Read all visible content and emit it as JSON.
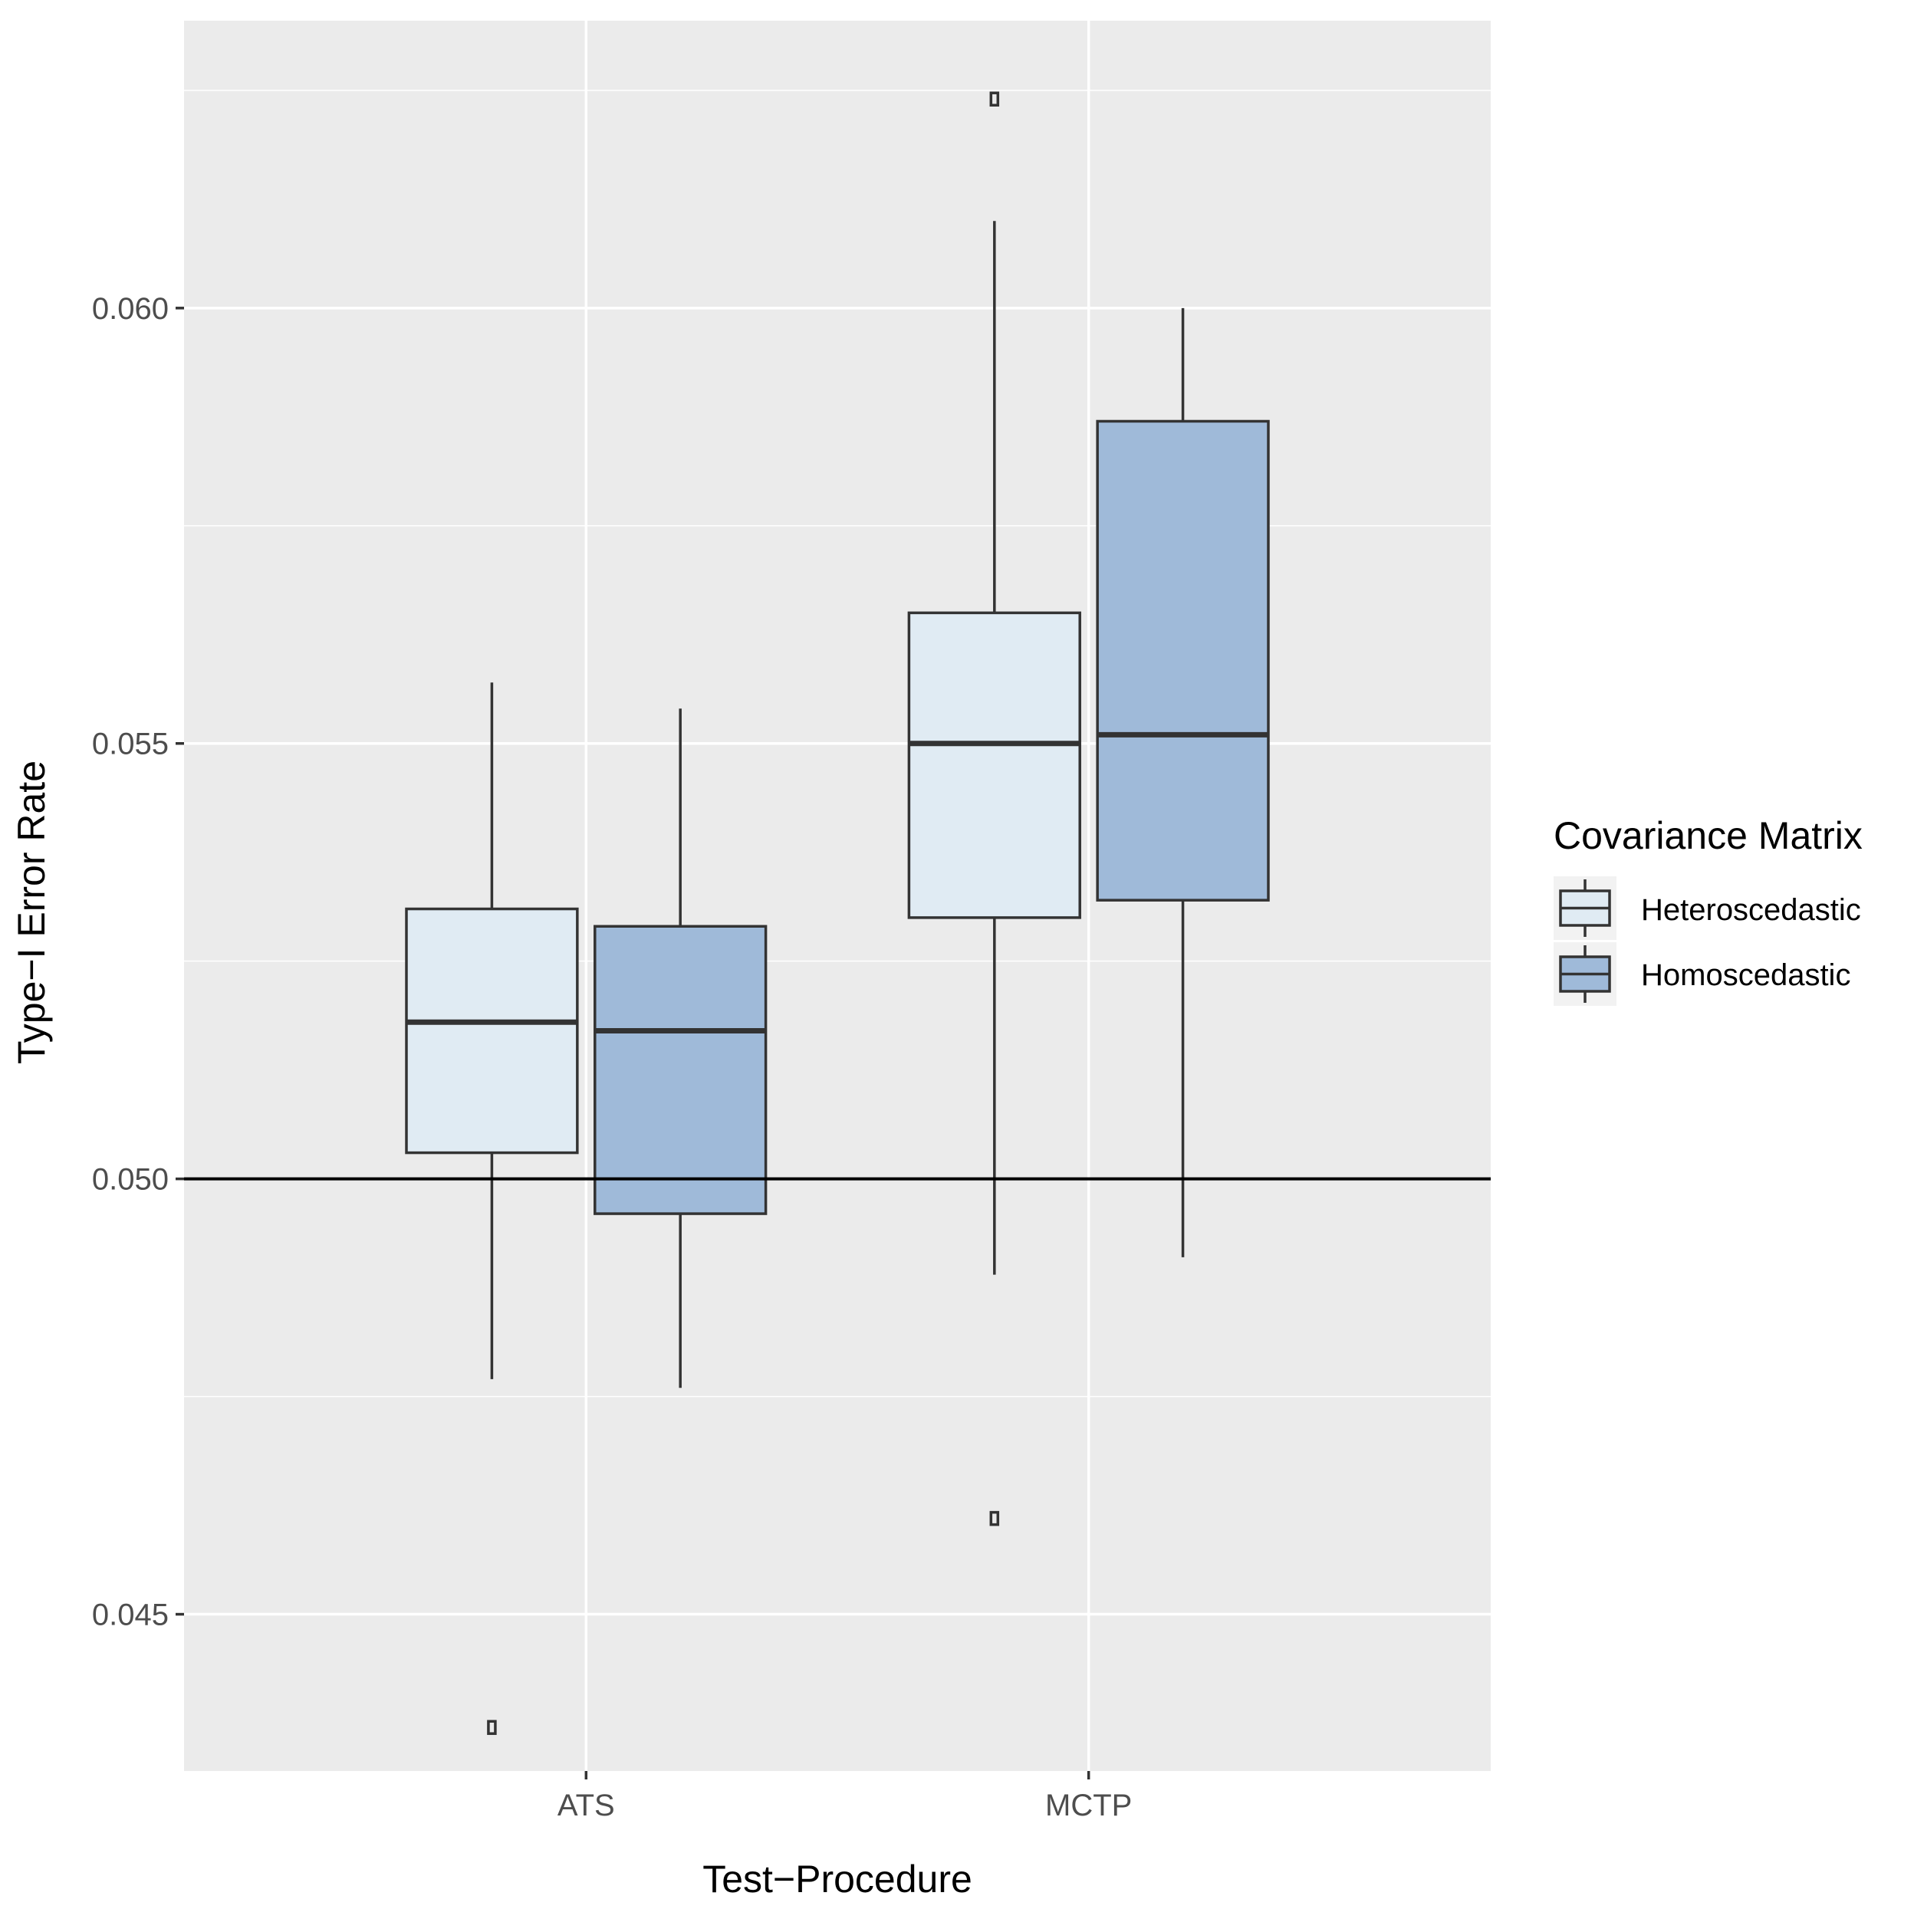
{
  "chart_data": {
    "type": "boxplot",
    "title": "",
    "xlabel": "Test−Procedure",
    "ylabel": "Type−I Error Rate",
    "categories": [
      "ATS",
      "MCTP"
    ],
    "yticks": [
      "0.045",
      "0.050",
      "0.055",
      "0.060"
    ],
    "ytick_values": [
      0.045,
      0.05,
      0.055,
      0.06
    ],
    "ylim": [
      0.0432,
      0.0633
    ],
    "reference_line": 0.05,
    "grid": true,
    "legend": {
      "title": "Covariance Matrix",
      "position": "right",
      "entries": [
        "Heteroscedastic",
        "Homoscedastic"
      ]
    },
    "series": [
      {
        "name": "Heteroscedastic",
        "color": "#e0ebf3",
        "boxes": [
          {
            "category": "ATS",
            "whisker_low": 0.0477,
            "q1": 0.0503,
            "median": 0.0518,
            "q3": 0.0531,
            "whisker_high": 0.0557,
            "outliers": [
              0.0437
            ]
          },
          {
            "category": "MCTP",
            "whisker_low": 0.0489,
            "q1": 0.053,
            "median": 0.055,
            "q3": 0.0565,
            "whisker_high": 0.061,
            "outliers": [
              0.0624,
              0.0461
            ]
          }
        ]
      },
      {
        "name": "Homoscedastic",
        "color": "#9fbad9",
        "boxes": [
          {
            "category": "ATS",
            "whisker_low": 0.0476,
            "q1": 0.0496,
            "median": 0.0517,
            "q3": 0.0529,
            "whisker_high": 0.0554,
            "outliers": []
          },
          {
            "category": "MCTP",
            "whisker_low": 0.0491,
            "q1": 0.0532,
            "median": 0.0551,
            "q3": 0.0587,
            "whisker_high": 0.06,
            "outliers": []
          }
        ]
      }
    ]
  },
  "colors": {
    "panel": "#ebebeb",
    "grid": "#ffffff",
    "box_line": "#333333",
    "reference_line": "#000000"
  }
}
